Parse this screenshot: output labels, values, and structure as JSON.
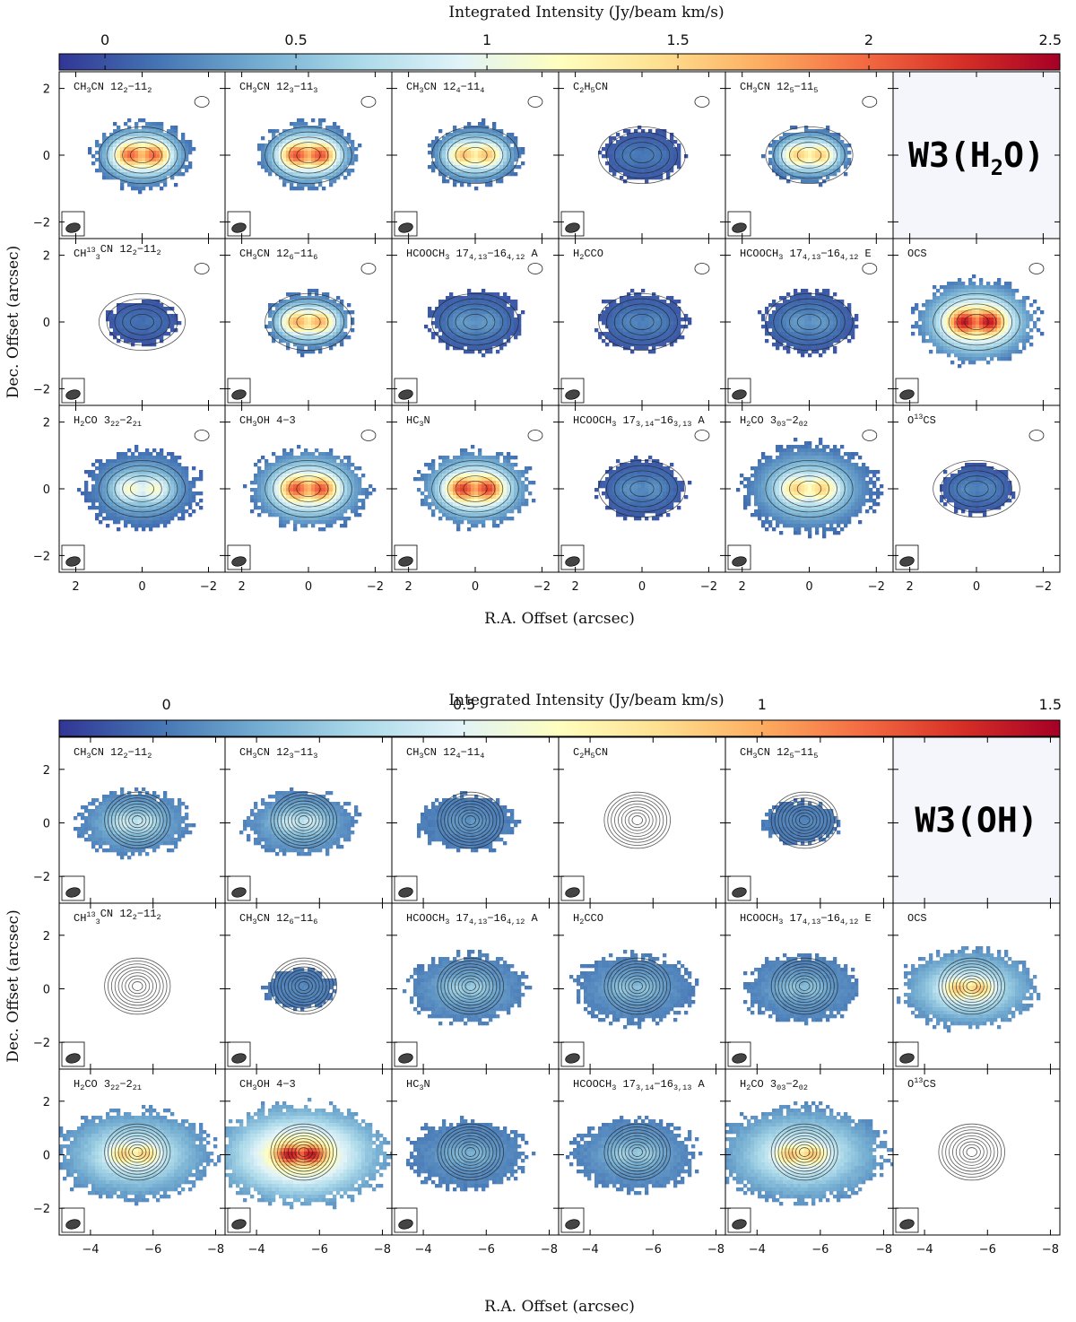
{
  "chart_data": [
    {
      "type": "heatmap",
      "source_label": "W3(H2O)",
      "title_parts": {
        "pre": "W3(H",
        "sub": "2",
        "post": "O)"
      },
      "colorbar": {
        "label": "Integrated Intensity (Jy/beam km/s)",
        "range": [
          -0.12,
          2.5
        ],
        "ticks": [
          0,
          0.5,
          1,
          1.5,
          2,
          2.5
        ],
        "tick_labels": [
          "0",
          "0.5",
          "1",
          "1.5",
          "2",
          "2.5"
        ],
        "colormap": [
          "#313695",
          "#4575b4",
          "#74add1",
          "#abd9e9",
          "#e0f3f8",
          "#ffffbf",
          "#fee090",
          "#fdae61",
          "#f46d43",
          "#d73027",
          "#a50026"
        ]
      },
      "xlabel": "R.A. Offset (arcsec)",
      "ylabel": "Dec. Offset (arcsec)",
      "xlim": [
        2.5,
        -2.5
      ],
      "ylim": [
        -2.5,
        2.5
      ],
      "xticks": [
        2,
        0,
        -2
      ],
      "xtick_labels": [
        "2",
        "0",
        "−2"
      ],
      "yticks": [
        -2,
        0,
        2
      ],
      "ytick_labels": [
        "−2",
        "0",
        "2"
      ],
      "center": [
        0,
        0
      ],
      "panels": [
        {
          "row": 0,
          "col": 0,
          "label": [
            [
              "t",
              "CH"
            ],
            [
              "s",
              "3"
            ],
            [
              "t",
              "CN 12"
            ],
            [
              "s",
              "2"
            ],
            [
              "t",
              "−11"
            ],
            [
              "s",
              "2"
            ]
          ],
          "peak": 2.15,
          "extent": 1.0
        },
        {
          "row": 0,
          "col": 1,
          "label": [
            [
              "t",
              "CH"
            ],
            [
              "s",
              "3"
            ],
            [
              "t",
              "CN 12"
            ],
            [
              "s",
              "3"
            ],
            [
              "t",
              "−11"
            ],
            [
              "s",
              "3"
            ]
          ],
          "peak": 2.25,
          "extent": 1.0
        },
        {
          "row": 0,
          "col": 2,
          "label": [
            [
              "t",
              "CH"
            ],
            [
              "s",
              "3"
            ],
            [
              "t",
              "CN 12"
            ],
            [
              "s",
              "4"
            ],
            [
              "t",
              "−11"
            ],
            [
              "s",
              "4"
            ]
          ],
          "peak": 1.75,
          "extent": 0.95
        },
        {
          "row": 0,
          "col": 3,
          "label": [
            [
              "t",
              "C"
            ],
            [
              "s",
              "2"
            ],
            [
              "t",
              "H"
            ],
            [
              "s",
              "5"
            ],
            [
              "t",
              "CN"
            ]
          ],
          "peak": 0.2,
          "extent": 0.8
        },
        {
          "row": 0,
          "col": 4,
          "label": [
            [
              "t",
              "CH"
            ],
            [
              "s",
              "3"
            ],
            [
              "t",
              "CN 12"
            ],
            [
              "s",
              "5"
            ],
            [
              "t",
              "−11"
            ],
            [
              "s",
              "5"
            ]
          ],
          "peak": 1.7,
          "extent": 0.85
        },
        {
          "row": 1,
          "col": 0,
          "label": [
            [
              "t",
              "CH"
            ],
            [
              "p",
              "13"
            ],
            [
              "s",
              "3"
            ],
            [
              "t",
              "CN 12"
            ],
            [
              "s",
              "2"
            ],
            [
              "t",
              "−11"
            ],
            [
              "s",
              "2"
            ]
          ],
          "peak": 0.15,
          "extent": 0.7
        },
        {
          "row": 1,
          "col": 1,
          "label": [
            [
              "t",
              "CH"
            ],
            [
              "s",
              "3"
            ],
            [
              "t",
              "CN 12"
            ],
            [
              "s",
              "6"
            ],
            [
              "t",
              "−11"
            ],
            [
              "s",
              "6"
            ]
          ],
          "peak": 1.85,
          "extent": 0.9
        },
        {
          "row": 1,
          "col": 2,
          "label": [
            [
              "t",
              "HCOOCH"
            ],
            [
              "s",
              "3"
            ],
            [
              "t",
              " 17"
            ],
            [
              "s",
              "4,13"
            ],
            [
              "t",
              "−16"
            ],
            [
              "s",
              "4,12"
            ],
            [
              "t",
              " A"
            ]
          ],
          "peak": 0.35,
          "extent": 0.95
        },
        {
          "row": 1,
          "col": 3,
          "label": [
            [
              "t",
              "H"
            ],
            [
              "s",
              "2"
            ],
            [
              "t",
              "CCO"
            ]
          ],
          "peak": 0.25,
          "extent": 0.9
        },
        {
          "row": 1,
          "col": 4,
          "label": [
            [
              "t",
              "HCOOCH"
            ],
            [
              "s",
              "3"
            ],
            [
              "t",
              " 17"
            ],
            [
              "s",
              "4,13"
            ],
            [
              "t",
              "−16"
            ],
            [
              "s",
              "4,12"
            ],
            [
              "t",
              " E"
            ]
          ],
          "peak": 0.35,
          "extent": 0.95
        },
        {
          "row": 1,
          "col": 5,
          "label": [
            [
              "t",
              "OCS"
            ]
          ],
          "peak": 2.5,
          "extent": 1.25
        },
        {
          "row": 2,
          "col": 0,
          "label": [
            [
              "t",
              "H"
            ],
            [
              "s",
              "2"
            ],
            [
              "t",
              "CO 3"
            ],
            [
              "s",
              "22"
            ],
            [
              "t",
              "−2"
            ],
            [
              "s",
              "21"
            ]
          ],
          "peak": 1.2,
          "extent": 1.2
        },
        {
          "row": 2,
          "col": 1,
          "label": [
            [
              "t",
              "CH"
            ],
            [
              "s",
              "3"
            ],
            [
              "t",
              "OH 4−3"
            ]
          ],
          "peak": 2.2,
          "extent": 1.2
        },
        {
          "row": 2,
          "col": 2,
          "label": [
            [
              "t",
              "HC"
            ],
            [
              "s",
              "3"
            ],
            [
              "t",
              "N"
            ]
          ],
          "peak": 2.3,
          "extent": 1.15
        },
        {
          "row": 2,
          "col": 3,
          "label": [
            [
              "t",
              "HCOOCH"
            ],
            [
              "s",
              "3"
            ],
            [
              "t",
              " 17"
            ],
            [
              "s",
              "3,14"
            ],
            [
              "t",
              "−16"
            ],
            [
              "s",
              "3,13"
            ],
            [
              "t",
              " A"
            ]
          ],
          "peak": 0.3,
          "extent": 0.9
        },
        {
          "row": 2,
          "col": 4,
          "label": [
            [
              "t",
              "H"
            ],
            [
              "s",
              "2"
            ],
            [
              "t",
              "CO 3"
            ],
            [
              "s",
              "03"
            ],
            [
              "t",
              "−2"
            ],
            [
              "s",
              "02"
            ]
          ],
          "peak": 1.6,
          "extent": 1.35
        },
        {
          "row": 2,
          "col": 5,
          "label": [
            [
              "t",
              "O"
            ],
            [
              "p",
              "13"
            ],
            [
              "t",
              "CS"
            ]
          ],
          "peak": 0.25,
          "extent": 0.75
        }
      ]
    },
    {
      "type": "heatmap",
      "source_label": "W3(OH)",
      "title_parts": {
        "pre": "W3(OH)",
        "sub": "",
        "post": ""
      },
      "colorbar": {
        "label": "Integrated Intensity (Jy/beam km/s)",
        "range": [
          -0.18,
          1.5
        ],
        "ticks": [
          0,
          0.5,
          1,
          1.5
        ],
        "tick_labels": [
          "0",
          "0.5",
          "1",
          "1.5"
        ],
        "colormap": [
          "#313695",
          "#4575b4",
          "#74add1",
          "#abd9e9",
          "#e0f3f8",
          "#ffffbf",
          "#fee090",
          "#fdae61",
          "#f46d43",
          "#d73027",
          "#a50026"
        ]
      },
      "xlabel": "R.A. Offset (arcsec)",
      "ylabel": "Dec. Offset (arcsec)",
      "xlim": [
        -3.0,
        -8.3
      ],
      "ylim": [
        -3.0,
        3.2
      ],
      "xticks": [
        -4,
        -6,
        -8
      ],
      "xtick_labels": [
        "−4",
        "−6",
        "−8"
      ],
      "yticks": [
        -2,
        0,
        2
      ],
      "ytick_labels": [
        "−2",
        "0",
        "2"
      ],
      "center": [
        -5.4,
        0.0
      ],
      "panels": [
        {
          "row": 0,
          "col": 0,
          "label": [
            [
              "t",
              "CH"
            ],
            [
              "s",
              "3"
            ],
            [
              "t",
              "CN 12"
            ],
            [
              "s",
              "2"
            ],
            [
              "t",
              "−11"
            ],
            [
              "s",
              "2"
            ]
          ],
          "peak": 0.45,
          "extent": 1.2
        },
        {
          "row": 0,
          "col": 1,
          "label": [
            [
              "t",
              "CH"
            ],
            [
              "s",
              "3"
            ],
            [
              "t",
              "CN 12"
            ],
            [
              "s",
              "3"
            ],
            [
              "t",
              "−11"
            ],
            [
              "s",
              "3"
            ]
          ],
          "peak": 0.45,
          "extent": 1.2
        },
        {
          "row": 0,
          "col": 2,
          "label": [
            [
              "t",
              "CH"
            ],
            [
              "s",
              "3"
            ],
            [
              "t",
              "CN 12"
            ],
            [
              "s",
              "4"
            ],
            [
              "t",
              "−11"
            ],
            [
              "s",
              "4"
            ]
          ],
          "peak": 0.1,
          "extent": 1.05
        },
        {
          "row": 0,
          "col": 3,
          "label": [
            [
              "t",
              "C"
            ],
            [
              "s",
              "2"
            ],
            [
              "t",
              "H"
            ],
            [
              "s",
              "5"
            ],
            [
              "t",
              "CN"
            ]
          ],
          "peak": null,
          "extent": 0
        },
        {
          "row": 0,
          "col": 4,
          "label": [
            [
              "t",
              "CH"
            ],
            [
              "s",
              "3"
            ],
            [
              "t",
              "CN 12"
            ],
            [
              "s",
              "5"
            ],
            [
              "t",
              "−11"
            ],
            [
              "s",
              "5"
            ]
          ],
          "peak": 0.05,
          "extent": 0.8
        },
        {
          "row": 1,
          "col": 0,
          "label": [
            [
              "t",
              "CH"
            ],
            [
              "p",
              "13"
            ],
            [
              "s",
              "3"
            ],
            [
              "t",
              "CN 12"
            ],
            [
              "s",
              "2"
            ],
            [
              "t",
              "−11"
            ],
            [
              "s",
              "2"
            ]
          ],
          "peak": null,
          "extent": 0
        },
        {
          "row": 1,
          "col": 1,
          "label": [
            [
              "t",
              "CH"
            ],
            [
              "s",
              "3"
            ],
            [
              "t",
              "CN 12"
            ],
            [
              "s",
              "6"
            ],
            [
              "t",
              "−11"
            ],
            [
              "s",
              "6"
            ]
          ],
          "peak": 0.05,
          "extent": 0.75
        },
        {
          "row": 1,
          "col": 2,
          "label": [
            [
              "t",
              "HCOOCH"
            ],
            [
              "s",
              "3"
            ],
            [
              "t",
              " 17"
            ],
            [
              "s",
              "4,13"
            ],
            [
              "t",
              "−16"
            ],
            [
              "s",
              "4,12"
            ],
            [
              "t",
              " A"
            ]
          ],
          "peak": 0.3,
          "extent": 1.3
        },
        {
          "row": 1,
          "col": 3,
          "label": [
            [
              "t",
              "H"
            ],
            [
              "s",
              "2"
            ],
            [
              "t",
              "CCO"
            ]
          ],
          "peak": 0.25,
          "extent": 1.3
        },
        {
          "row": 1,
          "col": 4,
          "label": [
            [
              "t",
              "HCOOCH"
            ],
            [
              "s",
              "3"
            ],
            [
              "t",
              " 17"
            ],
            [
              "s",
              "4,13"
            ],
            [
              "t",
              "−16"
            ],
            [
              "s",
              "4,12"
            ],
            [
              "t",
              " E"
            ]
          ],
          "peak": 0.25,
          "extent": 1.25
        },
        {
          "row": 1,
          "col": 5,
          "label": [
            [
              "t",
              "OCS"
            ]
          ],
          "peak": 0.95,
          "extent": 1.45
        },
        {
          "row": 2,
          "col": 0,
          "label": [
            [
              "t",
              "H"
            ],
            [
              "s",
              "2"
            ],
            [
              "t",
              "CO 3"
            ],
            [
              "s",
              "22"
            ],
            [
              "t",
              "−2"
            ],
            [
              "s",
              "21"
            ]
          ],
          "peak": 0.9,
          "extent": 1.7
        },
        {
          "row": 2,
          "col": 1,
          "label": [
            [
              "t",
              "CH"
            ],
            [
              "s",
              "3"
            ],
            [
              "t",
              "OH 4−3"
            ]
          ],
          "peak": 1.45,
          "extent": 1.9
        },
        {
          "row": 2,
          "col": 2,
          "label": [
            [
              "t",
              "HC"
            ],
            [
              "s",
              "3"
            ],
            [
              "t",
              "N"
            ]
          ],
          "peak": 0.2,
          "extent": 1.3
        },
        {
          "row": 2,
          "col": 3,
          "label": [
            [
              "t",
              "HCOOCH"
            ],
            [
              "s",
              "3"
            ],
            [
              "t",
              " 17"
            ],
            [
              "s",
              "3,14"
            ],
            [
              "t",
              "−16"
            ],
            [
              "s",
              "3,13"
            ],
            [
              "t",
              " A"
            ]
          ],
          "peak": 0.3,
          "extent": 1.35
        },
        {
          "row": 2,
          "col": 4,
          "label": [
            [
              "t",
              "H"
            ],
            [
              "s",
              "2"
            ],
            [
              "t",
              "CO 3"
            ],
            [
              "s",
              "03"
            ],
            [
              "t",
              "−2"
            ],
            [
              "s",
              "02"
            ]
          ],
          "peak": 0.95,
          "extent": 1.8
        },
        {
          "row": 2,
          "col": 5,
          "label": [
            [
              "t",
              "O"
            ],
            [
              "p",
              "13"
            ],
            [
              "t",
              "CS"
            ]
          ],
          "peak": null,
          "extent": 0
        }
      ]
    }
  ]
}
